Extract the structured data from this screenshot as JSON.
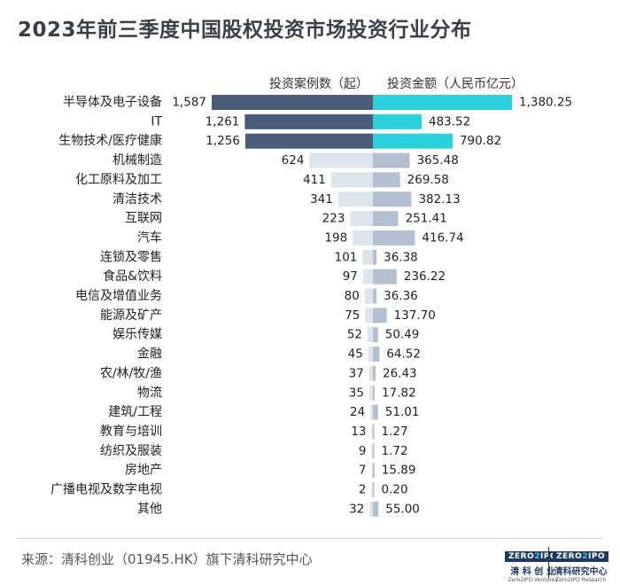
{
  "page": {
    "title": "2023年前三季度中国股权投资市场投资行业分布",
    "source": "来源：清科创业（01945.HK）旗下清科研究中心"
  },
  "logos": {
    "ventures": {
      "mark": "ZERO",
      "mark2": "2",
      "mark3": "IPO",
      "cn": "清 科 创 业",
      "en": "Zero2IPO Ventures"
    },
    "research": {
      "mark": "ZERO",
      "mark2": "2",
      "mark3": "IPO",
      "cn": "清科研究中心",
      "en": "Zero2IPO Research"
    }
  },
  "chart_data": {
    "type": "bar",
    "title": "2023年前三季度中国股权投资市场投资行业分布",
    "legend_position": "top",
    "categories": [
      "半导体及电子设备",
      "IT",
      "生物技术/医疗健康",
      "机械制造",
      "化工原料及加工",
      "清洁技术",
      "互联网",
      "汽车",
      "连锁及零售",
      "食品&饮料",
      "电信及增值业务",
      "能源及矿产",
      "娱乐传媒",
      "金融",
      "农/林/牧/渔",
      "物流",
      "建筑/工程",
      "教育与培训",
      "纺织及服装",
      "房地产",
      "广播电视及数字电视",
      "其他"
    ],
    "series": [
      {
        "name": "投资案例数（起）",
        "labels": [
          "1,587",
          "1,261",
          "1,256",
          "624",
          "411",
          "341",
          "223",
          "198",
          "101",
          "97",
          "80",
          "75",
          "52",
          "45",
          "37",
          "35",
          "24",
          "13",
          "9",
          "7",
          "2",
          "32"
        ],
        "values": [
          1587,
          1261,
          1256,
          624,
          411,
          341,
          223,
          198,
          101,
          97,
          80,
          75,
          52,
          45,
          37,
          35,
          24,
          13,
          9,
          7,
          2,
          32
        ]
      },
      {
        "name": "投资金额（人民币亿元）",
        "labels": [
          "1,380.25",
          "483.52",
          "790.82",
          "365.48",
          "269.58",
          "382.13",
          "251.41",
          "416.74",
          "36.38",
          "236.22",
          "36.36",
          "137.70",
          "50.49",
          "64.52",
          "26.43",
          "17.82",
          "51.01",
          "1.27",
          "1.72",
          "15.89",
          "0.20",
          "55.00"
        ],
        "values": [
          1380.25,
          483.52,
          790.82,
          365.48,
          269.58,
          382.13,
          251.41,
          416.74,
          36.38,
          236.22,
          36.36,
          137.7,
          50.49,
          64.52,
          26.43,
          17.82,
          51.01,
          1.27,
          1.72,
          15.89,
          0.2,
          55.0
        ]
      }
    ],
    "highlight_top_n": 3,
    "colors": {
      "left_top": "#4a5d78",
      "left_rest": "#dde4ec",
      "right_top": "#2cd0db",
      "right_rest": "#b4c0d1",
      "text": "#222222"
    }
  }
}
